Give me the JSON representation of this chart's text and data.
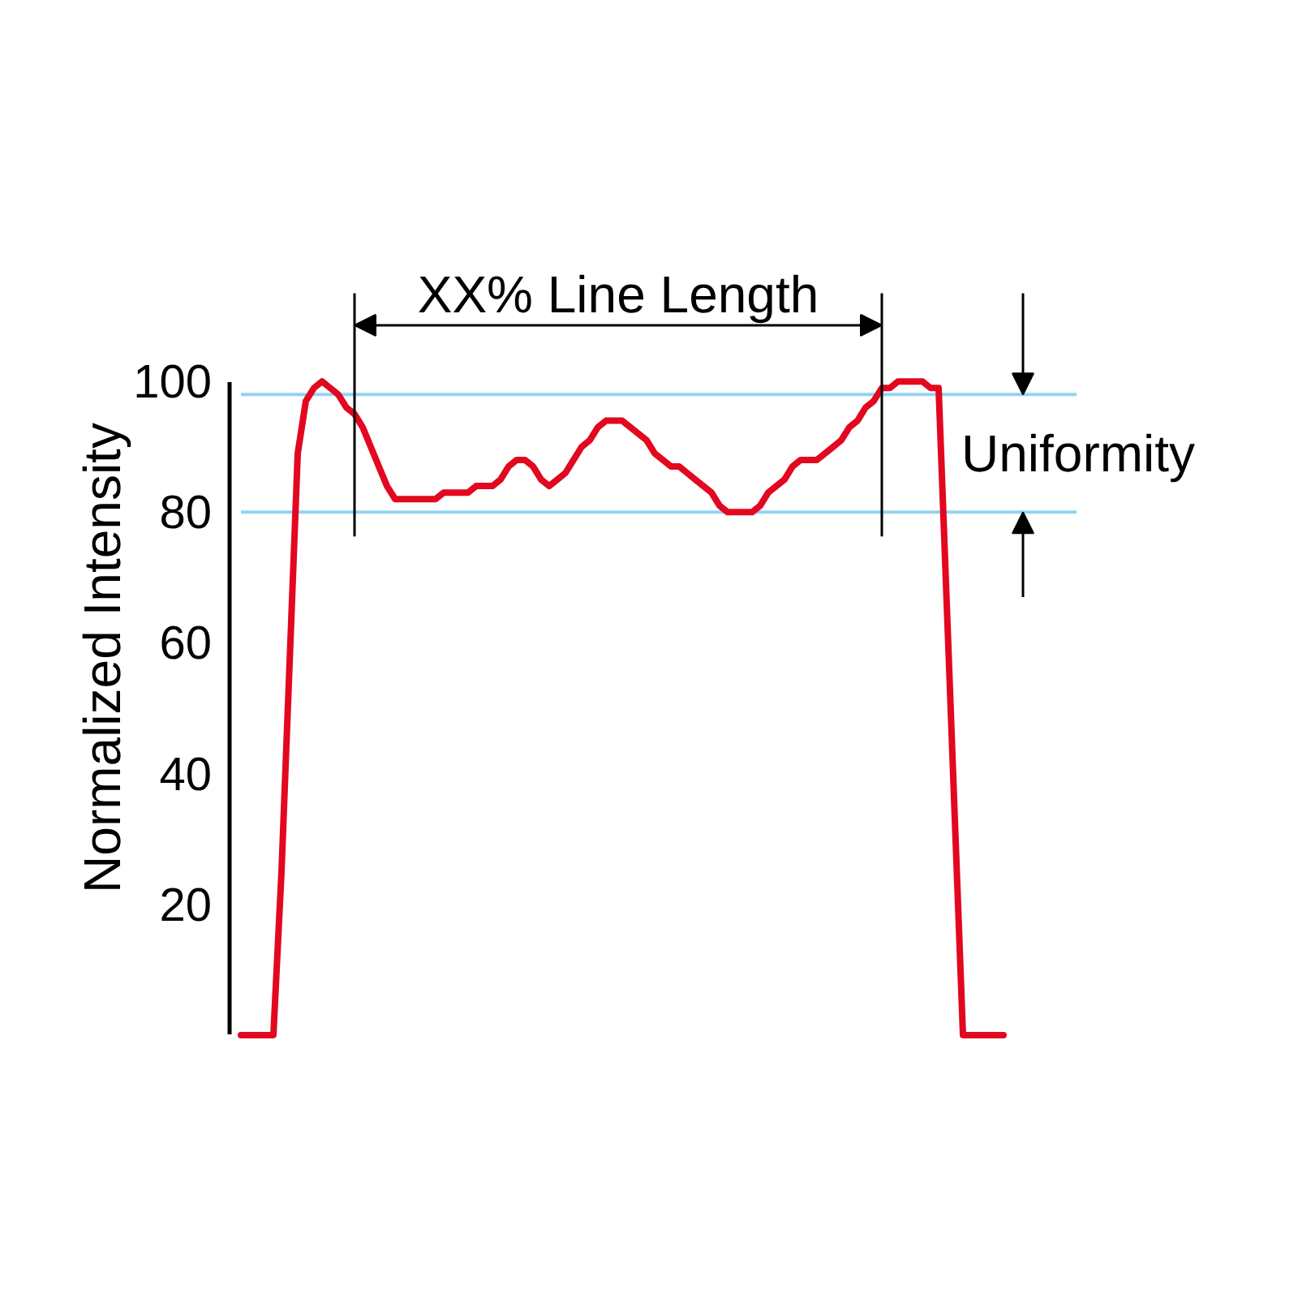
{
  "chart_data": {
    "type": "line",
    "categories": [
      null,
      null,
      null,
      null,
      null,
      null,
      null,
      null,
      null,
      null,
      null,
      null,
      null,
      null,
      null,
      null,
      null,
      null,
      null,
      null,
      null,
      null,
      null,
      null,
      null,
      null,
      null,
      null,
      null,
      null,
      null,
      null,
      null,
      null,
      null,
      null,
      null,
      null,
      null,
      null,
      null,
      null,
      null,
      null,
      null,
      null,
      null,
      null,
      null,
      null,
      null,
      null,
      null,
      null,
      null,
      null,
      null,
      null,
      null,
      null,
      null,
      null,
      null,
      null,
      null,
      null,
      null,
      null,
      null,
      null,
      null,
      null,
      null,
      null,
      null,
      null,
      null,
      null,
      null,
      null,
      null,
      null,
      null,
      null,
      null,
      null,
      null,
      null,
      null,
      null,
      null,
      null,
      null,
      null,
      null,
      null,
      null,
      null,
      null,
      null,
      null,
      null,
      null,
      null
    ],
    "series": [
      {
        "color": "#e2081f",
        "values": [
          0,
          0,
          0,
          0,
          0,
          25,
          57,
          89,
          97,
          99,
          100,
          99,
          98,
          96,
          95,
          93,
          90,
          87,
          84,
          82,
          82,
          82,
          82,
          82,
          82,
          83,
          83,
          83,
          83,
          84,
          84,
          84,
          85,
          87,
          88,
          88,
          87,
          85,
          84,
          85,
          86,
          88,
          90,
          91,
          93,
          94,
          94,
          94,
          93,
          92,
          91,
          89,
          88,
          87,
          87,
          86,
          85,
          84,
          83,
          81,
          80,
          80,
          80,
          80,
          81,
          83,
          84,
          85,
          87,
          88,
          88,
          88,
          89,
          90,
          91,
          93,
          94,
          96,
          97,
          99,
          99,
          100,
          100,
          100,
          100,
          99,
          99,
          66,
          33,
          0,
          0,
          0,
          0,
          0,
          0,
          null,
          null,
          null,
          null,
          null,
          null,
          null,
          null,
          null
        ]
      }
    ],
    "ylabel": "Normalized Intensity",
    "ylim": [
      0,
      100
    ],
    "yticks": [
      20,
      40,
      60,
      80,
      100
    ],
    "tick_labels": "y",
    "ref_lines": [
      {
        "axis": "y",
        "value": 98,
        "color": "#92d3f2"
      },
      {
        "axis": "y",
        "value": 80,
        "color": "#92d3f2"
      }
    ],
    "annotations": [
      "XX% Line Length",
      "Uniformity"
    ]
  }
}
